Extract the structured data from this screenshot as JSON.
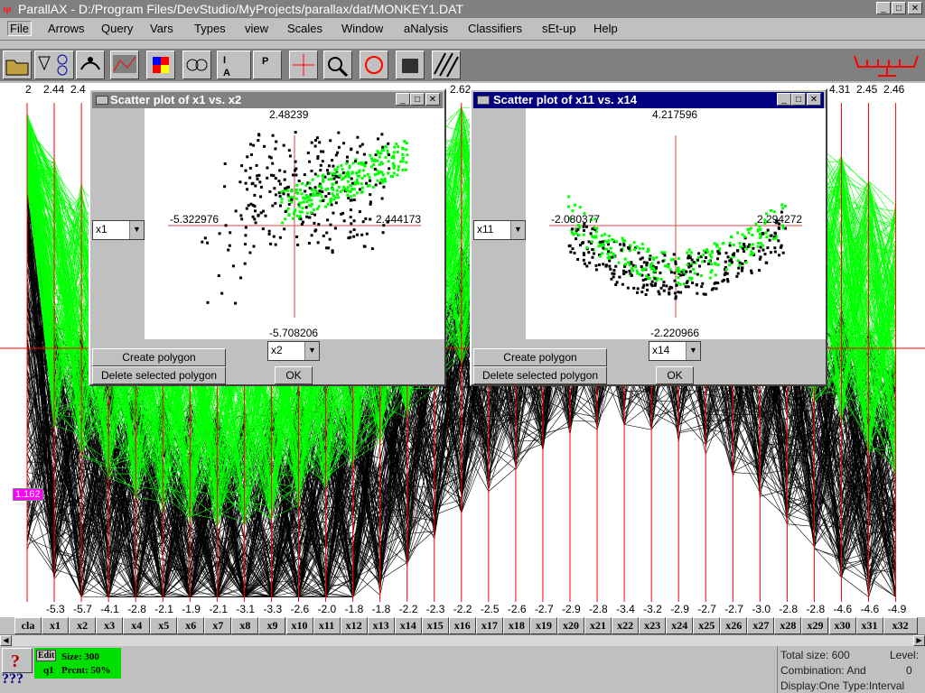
{
  "app": {
    "title": "ParallAX - D:/Program Files/DevStudio/MyProjects/parallax/dat/MONKEY1.DAT",
    "window_buttons": [
      "_",
      "□",
      "✕"
    ]
  },
  "menu": [
    {
      "label": "File"
    },
    {
      "label": "Arrows"
    },
    {
      "label": "Query"
    },
    {
      "label": "Vars"
    },
    {
      "label": "Types"
    },
    {
      "label": "view"
    },
    {
      "label": "Scales"
    },
    {
      "label": "Window"
    },
    {
      "label": "aNalysis"
    },
    {
      "label": "Classifiers"
    },
    {
      "label": "sEt-up"
    },
    {
      "label": "Help"
    }
  ],
  "toolbar_icons": [
    "open-folder-icon",
    "filter-icon",
    "query-icon",
    "arrows-icon",
    "graph-icon",
    "cube-icon",
    "links-icon",
    "text-icon",
    "paint-icon",
    "crosshair-icon",
    "magnify-icon",
    "rotate-icon",
    "printer-icon",
    "pattern-icon"
  ],
  "top_ticks": [
    "2",
    "2.44",
    "2.4",
    "2.62",
    "4.31",
    "2.45",
    "2.46"
  ],
  "bottom_ticks": [
    "-5.3",
    "-5.7",
    "-4.1",
    "-2.8",
    "-2.1",
    "-1.9",
    "-2.1",
    "-3.1",
    "-3.3",
    "-2.6",
    "-2.0",
    "-1.8",
    "-1.8",
    "-2.2",
    "-2.3",
    "-2.2",
    "-2.5",
    "-2.6",
    "-2.7",
    "-2.9",
    "-2.8",
    "-3.4",
    "-3.2",
    "-2.9",
    "-2.7",
    "-2.7",
    "-3.0",
    "-2.8",
    "-2.8",
    "-4.6",
    "-4.6",
    "-4.9"
  ],
  "axes": [
    "cla",
    "x1",
    "x2",
    "x3",
    "x4",
    "x5",
    "x6",
    "x7",
    "x8",
    "x9",
    "x10",
    "x11",
    "x12",
    "x13",
    "x14",
    "x15",
    "x16",
    "x17",
    "x18",
    "x19",
    "x20",
    "x21",
    "x22",
    "x23",
    "x24",
    "x25",
    "x26",
    "x27",
    "x28",
    "x29",
    "x30",
    "x31",
    "x32"
  ],
  "marker_value": "1.162",
  "colors": {
    "green": "#00ff00",
    "axis_red": "#ff0000",
    "active_title": "#000080",
    "inactive_title": "#808080"
  },
  "dialog1": {
    "title": "Scatter plot of x1 vs. x2",
    "top": "2.48239",
    "bottom": "-5.708206",
    "left": "-5.322976",
    "right": "2.444173",
    "x_select": "x1",
    "y_select": "x2",
    "create_label": "Create polygon",
    "delete_label": "Delete selected polygon",
    "ok_label": "OK"
  },
  "dialog2": {
    "title": "Scatter plot of x11 vs. x14",
    "top": "4.217596",
    "bottom": "-2.220966",
    "left": "-2.080377",
    "right": "2.294272",
    "x_select": "x11",
    "y_select": "x14",
    "create_label": "Create polygon",
    "delete_label": "Delete selected polygon",
    "ok_label": "OK"
  },
  "status": {
    "edit_label": "Edit",
    "size": "Size: 300",
    "query": "q1",
    "percent": "Prcnt: 50%",
    "help_glyph": "???",
    "total_size": "Total size: 600",
    "level_label": "Level:",
    "combination": "Combination: And",
    "level_value": "0",
    "display": "Display:One Type:Interval"
  }
}
